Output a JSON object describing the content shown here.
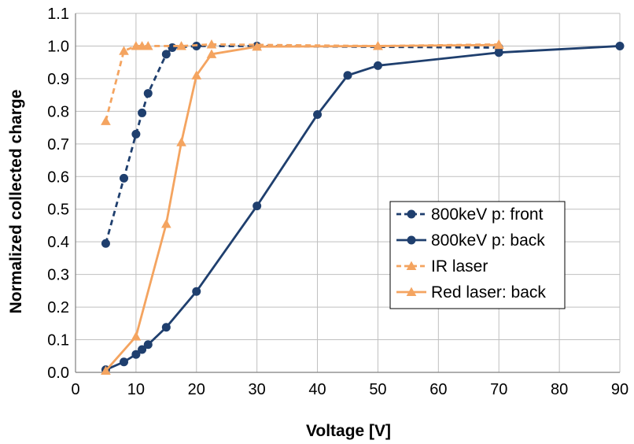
{
  "chart_data": {
    "type": "line",
    "title": "",
    "xlabel": "Voltage [V]",
    "ylabel": "Normalized collected charge",
    "xlim": [
      0,
      90
    ],
    "ylim": [
      0.0,
      1.1
    ],
    "xticks": [
      0,
      10,
      20,
      30,
      40,
      50,
      60,
      70,
      80,
      90
    ],
    "yticks": [
      0.0,
      0.1,
      0.2,
      0.3,
      0.4,
      0.5,
      0.6,
      0.7,
      0.8,
      0.9,
      1.0,
      1.1
    ],
    "xtick_labels": [
      "0",
      "10",
      "20",
      "30",
      "40",
      "50",
      "60",
      "70",
      "80",
      "90"
    ],
    "ytick_labels": [
      "0.0",
      "0.1",
      "0.2",
      "0.3",
      "0.4",
      "0.5",
      "0.6",
      "0.7",
      "0.8",
      "0.9",
      "1.0",
      "1.1"
    ],
    "grid": true,
    "legend_position": "center-right",
    "series": [
      {
        "name": "800keV p: front",
        "color": "#1f3f6e",
        "dash": true,
        "marker": "circle",
        "x": [
          5,
          8,
          10,
          11,
          12,
          15,
          16,
          20,
          30,
          70
        ],
        "y": [
          0.395,
          0.595,
          0.73,
          0.795,
          0.855,
          0.975,
          0.995,
          1.0,
          1.0,
          0.995
        ]
      },
      {
        "name": "800keV p: back",
        "color": "#1f3f6e",
        "dash": false,
        "marker": "circle",
        "x": [
          5,
          8,
          10,
          11,
          12,
          15,
          20,
          30,
          40,
          45,
          50,
          70,
          90
        ],
        "y": [
          0.008,
          0.032,
          0.055,
          0.07,
          0.085,
          0.138,
          0.248,
          0.51,
          0.79,
          0.91,
          0.94,
          0.98,
          1.0
        ]
      },
      {
        "name": "IR laser",
        "color": "#f4a460",
        "dash": true,
        "marker": "triangle",
        "x": [
          5,
          8,
          10,
          11,
          12,
          17.5,
          22.5,
          50,
          70
        ],
        "y": [
          0.77,
          0.985,
          1.0,
          1.0,
          1.0,
          1.0,
          1.005,
          1.0,
          1.005
        ]
      },
      {
        "name": "Red laser: back",
        "color": "#f4a460",
        "dash": false,
        "marker": "triangle",
        "x": [
          5,
          10,
          15,
          17.5,
          20,
          22.5,
          30,
          50,
          70
        ],
        "y": [
          0.005,
          0.11,
          0.455,
          0.705,
          0.91,
          0.975,
          0.998,
          1.0,
          1.003
        ]
      }
    ]
  }
}
